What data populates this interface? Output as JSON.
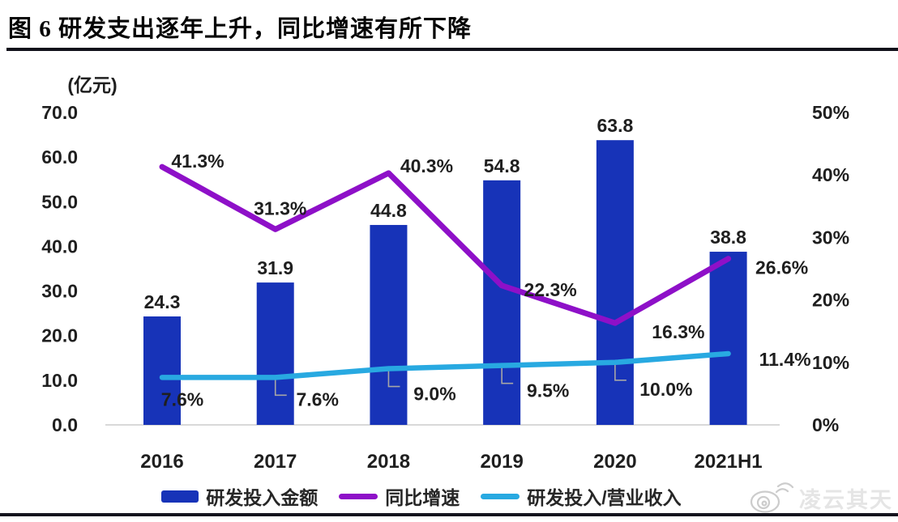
{
  "title": "图 6 研发支出逐年上升，同比增速有所下降",
  "watermark": {
    "icon": "weibo-icon",
    "text": "凌云其天"
  },
  "colors": {
    "bar": "#1733b8",
    "yoy_line": "#8e10c8",
    "ratio_line": "#28a9e1",
    "text": "#1f1f1f",
    "baseline": "#d9d9d9",
    "leader": "#a6a6a6"
  },
  "chart_data": {
    "type": "combo-bar-line",
    "title": "图 6 研发支出逐年上升，同比增速有所下降",
    "categories": [
      "2016",
      "2017",
      "2018",
      "2019",
      "2020",
      "2021H1"
    ],
    "left_axis": {
      "unit_label": "(亿元)",
      "range": [
        0,
        70
      ],
      "ticks": [
        "70.0",
        "60.0",
        "50.0",
        "40.0",
        "30.0",
        "20.0",
        "10.0",
        "0.0"
      ]
    },
    "right_axis": {
      "range": [
        0,
        50
      ],
      "ticks": [
        "50%",
        "40%",
        "30%",
        "20%",
        "10%",
        "0%"
      ]
    },
    "series": [
      {
        "name": "研发投入金额",
        "type": "bar",
        "axis": "left",
        "color": "#1733b8",
        "values": [
          24.3,
          31.9,
          44.8,
          54.8,
          63.8,
          38.8
        ],
        "labels": [
          "24.3",
          "31.9",
          "44.8",
          "54.8",
          "63.8",
          "38.8"
        ]
      },
      {
        "name": "同比增速",
        "type": "line",
        "axis": "right",
        "color": "#8e10c8",
        "values": [
          41.3,
          31.3,
          40.3,
          22.3,
          16.3,
          26.6
        ],
        "labels": [
          "41.3%",
          "31.3%",
          "40.3%",
          "22.3%",
          "16.3%",
          "26.6%"
        ]
      },
      {
        "name": "研发投入/营业收入",
        "type": "line",
        "axis": "right",
        "color": "#28a9e1",
        "values": [
          7.6,
          7.6,
          9.0,
          9.5,
          10.0,
          11.4
        ],
        "labels": [
          "7.6%",
          "7.6%",
          "9.0%",
          "9.5%",
          "10.0%",
          "11.4%"
        ]
      }
    ],
    "legend_position": "bottom",
    "grid": false
  }
}
